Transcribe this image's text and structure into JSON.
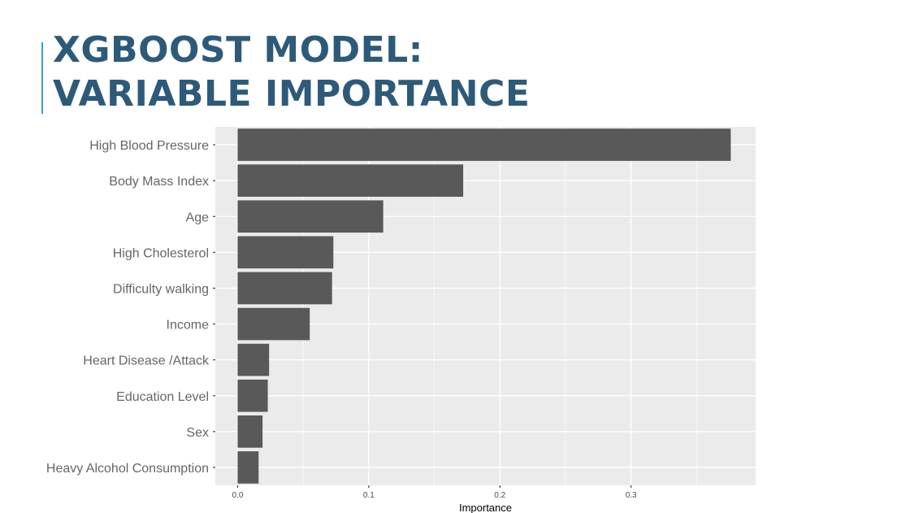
{
  "slide": {
    "title_line1": "XGBOOST MODEL:",
    "title_line2": "VARIABLE IMPORTANCE",
    "accent_color": "#3a9fd6",
    "title_color": "#2e5a7a"
  },
  "chart_data": {
    "type": "bar",
    "orientation": "horizontal",
    "categories": [
      "High Blood Pressure",
      "Body Mass Index",
      "Age",
      "High Cholesterol",
      "Difficulty walking",
      "Income",
      "Heart Disease /Attack",
      "Education Level",
      "Sex",
      "Heavy Alcohol Consumption"
    ],
    "values": [
      0.376,
      0.172,
      0.111,
      0.073,
      0.072,
      0.055,
      0.024,
      0.023,
      0.019,
      0.016
    ],
    "xlabel": "Importance",
    "ylabel": "",
    "xlim": [
      -0.017,
      0.395
    ],
    "xticks": [
      0.0,
      0.1,
      0.2,
      0.3
    ],
    "xtick_labels": [
      "0.0",
      "0.1",
      "0.2",
      "0.3"
    ],
    "grid": true,
    "bar_color": "#595959",
    "panel_color": "#ebebeb",
    "grid_color": "#ffffff"
  }
}
